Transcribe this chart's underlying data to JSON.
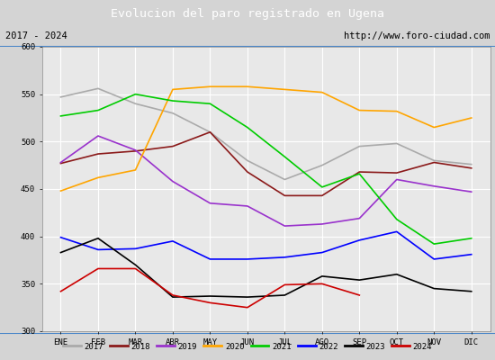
{
  "title": "Evolucion del paro registrado en Ugena",
  "subtitle_left": "2017 - 2024",
  "subtitle_right": "http://www.foro-ciudad.com",
  "months": [
    "ENE",
    "FEB",
    "MAR",
    "ABR",
    "MAY",
    "JUN",
    "JUL",
    "AGO",
    "SEP",
    "OCT",
    "NOV",
    "DIC"
  ],
  "ylim": [
    300,
    600
  ],
  "yticks": [
    300,
    350,
    400,
    450,
    500,
    550,
    600
  ],
  "series": {
    "2017": {
      "color": "#aaaaaa",
      "data": [
        547,
        556,
        540,
        530,
        510,
        480,
        460,
        475,
        495,
        498,
        480,
        476
      ]
    },
    "2018": {
      "color": "#8b1a1a",
      "data": [
        477,
        487,
        490,
        495,
        510,
        468,
        443,
        443,
        468,
        467,
        478,
        472
      ]
    },
    "2019": {
      "color": "#9932cc",
      "data": [
        478,
        506,
        491,
        458,
        435,
        432,
        411,
        413,
        419,
        460,
        453,
        447
      ]
    },
    "2020": {
      "color": "#ffa500",
      "data": [
        448,
        462,
        470,
        555,
        558,
        558,
        555,
        552,
        533,
        532,
        515,
        525
      ]
    },
    "2021": {
      "color": "#00cc00",
      "data": [
        527,
        533,
        550,
        543,
        540,
        515,
        484,
        452,
        466,
        418,
        392,
        398
      ]
    },
    "2022": {
      "color": "#0000ff",
      "data": [
        399,
        386,
        387,
        395,
        376,
        376,
        378,
        383,
        396,
        405,
        376,
        381
      ]
    },
    "2023": {
      "color": "#000000",
      "data": [
        383,
        398,
        370,
        336,
        337,
        336,
        338,
        358,
        354,
        360,
        345,
        342
      ]
    },
    "2024": {
      "color": "#cc0000",
      "data": [
        342,
        366,
        366,
        338,
        330,
        325,
        349,
        350,
        338,
        null,
        null,
        null
      ]
    }
  },
  "background_color": "#d4d4d4",
  "plot_background": "#e8e8e8",
  "title_bg": "#4a86c8",
  "title_color": "white",
  "header_bg": "#d4d4d4",
  "grid_color": "white",
  "border_color": "#4a86c8"
}
